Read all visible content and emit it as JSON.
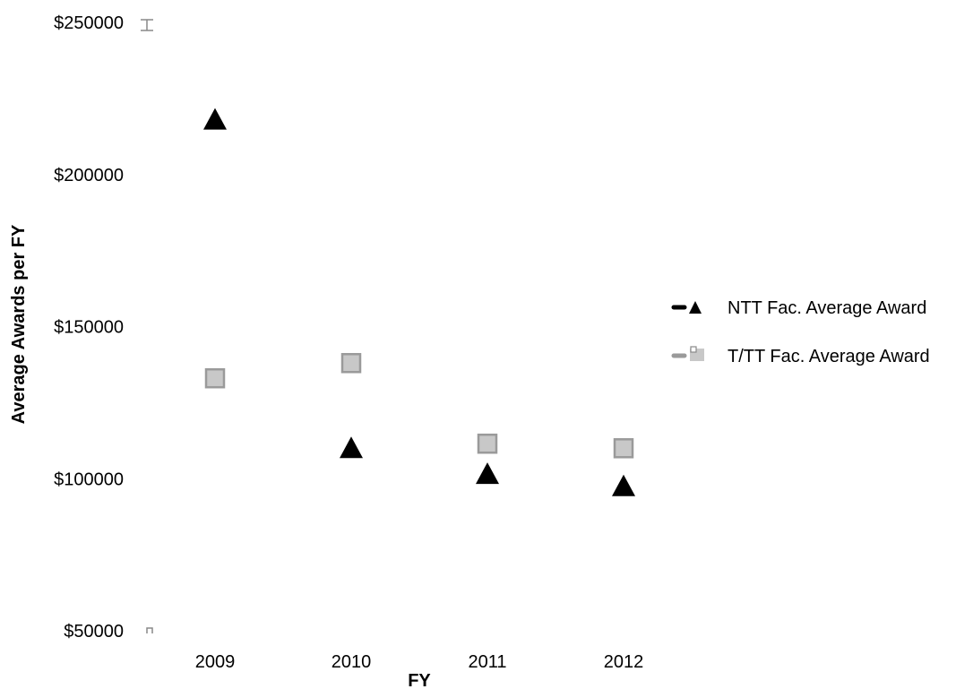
{
  "chart_data": {
    "type": "scatter",
    "title": "",
    "xlabel": "FY",
    "ylabel": "Average Awards per FY",
    "categories": [
      "2009",
      "2010",
      "2011",
      "2012"
    ],
    "ylim": [
      50000,
      250000
    ],
    "yticks": [
      {
        "value": 250000,
        "label": "$250000"
      },
      {
        "value": 200000,
        "label": "$200000"
      },
      {
        "value": 150000,
        "label": "$150000"
      },
      {
        "value": 100000,
        "label": "$100000"
      },
      {
        "value": 50000,
        "label": "$50000"
      }
    ],
    "grid": false,
    "legend_position": "right",
    "series": [
      {
        "name": "NTT Fac. Average Award",
        "marker": "triangle",
        "color": "#000000",
        "values": [
          218000,
          110000,
          101500,
          97500
        ]
      },
      {
        "name": "T/TT Fac. Average Award",
        "marker": "square",
        "color": "#c8c8c8",
        "stroke": "#9a9a9a",
        "values": [
          133000,
          138000,
          111500,
          110000
        ]
      }
    ]
  }
}
